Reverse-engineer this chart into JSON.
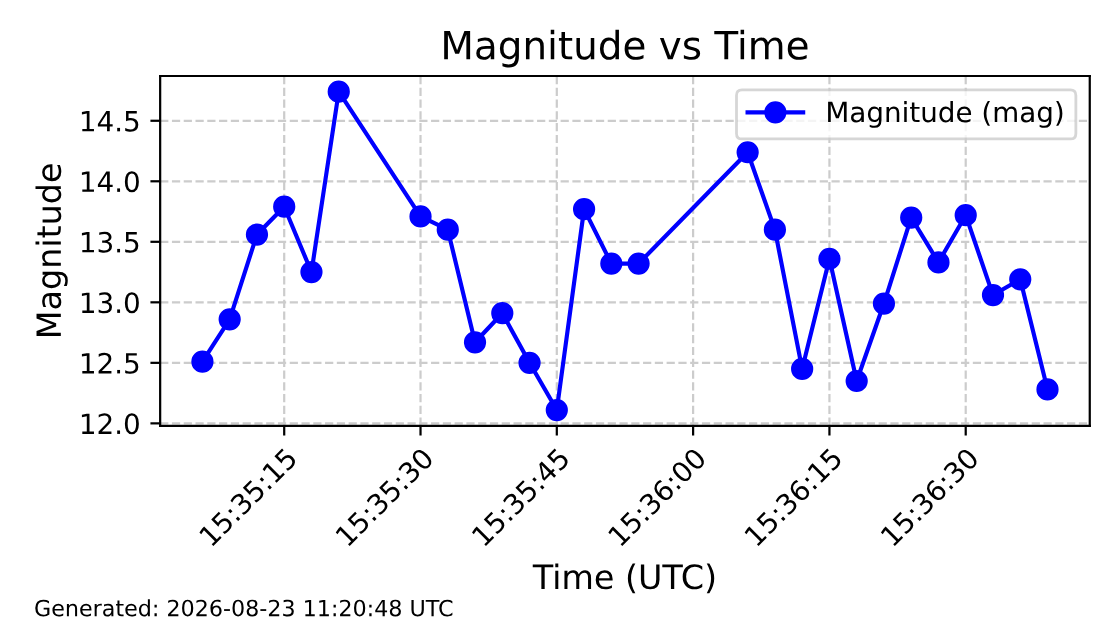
{
  "chart_data": {
    "type": "line",
    "title": "Magnitude vs Time",
    "xlabel": "Time (UTC)",
    "ylabel": "Magnitude",
    "x": [
      15.585,
      15.585833,
      15.586667,
      15.5875,
      15.588333,
      15.589167,
      15.591667,
      15.5925,
      15.593333,
      15.594167,
      15.595,
      15.595833,
      15.596667,
      15.5975,
      15.598333,
      15.601667,
      15.6025,
      15.603333,
      15.604167,
      15.605,
      15.605833,
      15.606667,
      15.6075,
      15.608333,
      15.609167,
      15.61,
      15.610833
    ],
    "series": [
      {
        "name": "Magnitude (mag)",
        "color": "#0000ff",
        "values": [
          12.51,
          12.86,
          13.56,
          13.79,
          13.25,
          14.74,
          13.71,
          13.6,
          12.67,
          12.91,
          12.5,
          12.11,
          13.77,
          13.32,
          13.32,
          14.24,
          13.6,
          12.45,
          13.36,
          12.35,
          12.99,
          13.7,
          13.33,
          13.72,
          13.06,
          13.19,
          12.28
        ]
      }
    ],
    "xlim": [
      15.583708,
      15.612125
    ],
    "xticks": [
      {
        "value": 15.5875,
        "label": "15:35:15"
      },
      {
        "value": 15.591667,
        "label": "15:35:30"
      },
      {
        "value": 15.595833,
        "label": "15:35:45"
      },
      {
        "value": 15.6,
        "label": "15:36:00"
      },
      {
        "value": 15.604167,
        "label": "15:36:15"
      },
      {
        "value": 15.608333,
        "label": "15:36:30"
      }
    ],
    "ylim": [
      11.98,
      14.87
    ],
    "yticks": [
      {
        "value": 12,
        "label": "12.0"
      },
      12.5,
      {
        "value": 13,
        "label": "13.0"
      },
      13.5,
      {
        "value": 14,
        "label": "14.0"
      },
      14.5
    ],
    "grid": true,
    "legend": "top right",
    "marker": "circle",
    "line_style": "solid",
    "annotations": [
      "Generated: 2026-08-23 11:20:48 UTC"
    ]
  }
}
